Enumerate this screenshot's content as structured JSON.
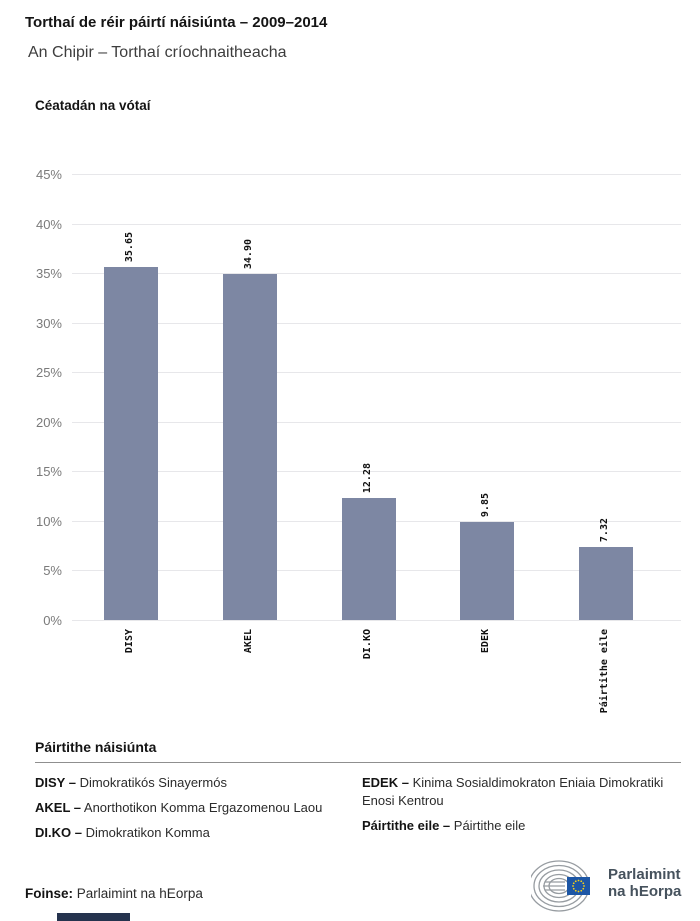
{
  "header": {
    "title": "Torthaí de réir páirtí náisiúnta – 2009–2014",
    "subtitle": "An Chipir – Torthaí críochnaitheacha"
  },
  "chart_data": {
    "type": "bar",
    "title": "Céatadán na vótaí",
    "categories": [
      "DISY",
      "AKEL",
      "DI.KO",
      "EDEK",
      "Páirtithe eile"
    ],
    "values": [
      35.65,
      34.9,
      12.28,
      9.85,
      7.32
    ],
    "value_labels": [
      "35.65",
      "34.90",
      "12.28",
      "9.85",
      "7.32"
    ],
    "ytick_labels": [
      "45%",
      "40%",
      "35%",
      "30%",
      "25%",
      "20%",
      "15%",
      "10%",
      "5%",
      "0%"
    ],
    "ylim": [
      0,
      45
    ],
    "grid": true,
    "legend_position": "none",
    "bar_color": "#7d87a3"
  },
  "legend": {
    "heading": "Páirtithe náisiúnta",
    "entries": [
      {
        "abbr": "DISY –",
        "name": "Dimokratikós Sinayermós"
      },
      {
        "abbr": "AKEL –",
        "name": "Anorthotikon Komma Ergazomenou Laou"
      },
      {
        "abbr": "DI.KO –",
        "name": "Dimokratikon Komma"
      },
      {
        "abbr": "EDEK –",
        "name": "Kinima Sosialdimokraton Eniaia Dimokratiki Enosi Kentrou"
      },
      {
        "abbr": "Páirtithe eile –",
        "name": "Páirtithe eile"
      }
    ]
  },
  "footer": {
    "source_label": "Foinse:",
    "source_value": " Parlaimint na hEorpa",
    "logo_line1": "Parlaimint",
    "logo_line2": "na hEorpa"
  },
  "colors": {
    "bar": "#7d87a3",
    "grid": "#e7e7ea",
    "tick_text": "#7a7a7a",
    "logo_text": "#46525d",
    "flag_blue": "#1d56a5",
    "star_yellow": "#f7d117",
    "hemicycle_gray": "#979ca1"
  }
}
